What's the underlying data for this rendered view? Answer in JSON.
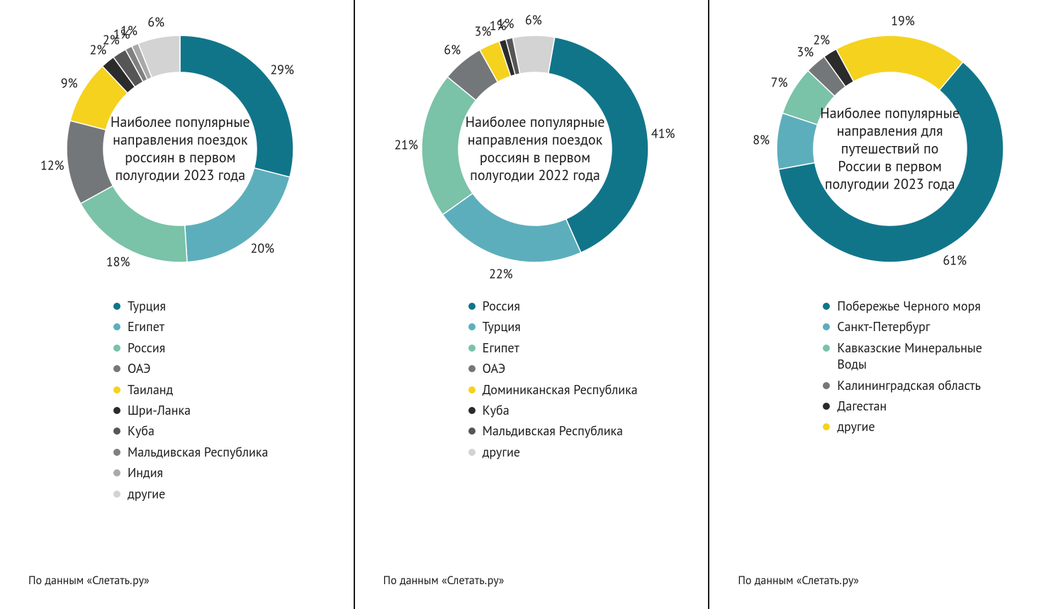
{
  "global": {
    "background_color": "#ffffff",
    "divider_color": "#1a1a1a",
    "text_color": "#1a1a1a",
    "font_family": "PT Sans, Helvetica Neue, Arial, sans-serif",
    "label_fontsize": 18,
    "title_fontsize": 20,
    "legend_fontsize": 18,
    "source_fontsize": 16,
    "donut_outer_radius": 160,
    "donut_inner_radius": 108,
    "label_radius": 182
  },
  "panels": [
    {
      "id": "p1",
      "title": "Наиболее популярные направления поездок россиян в первом полугодии 2023 года",
      "source": "По данным «Слетать.ру»",
      "type": "donut",
      "start_angle_deg": 0,
      "slices": [
        {
          "label": "Турция",
          "value": 29,
          "display": "29%",
          "color": "#11758a",
          "show_label": true
        },
        {
          "label": "Египет",
          "value": 20,
          "display": "20%",
          "color": "#5daebc",
          "show_label": true
        },
        {
          "label": "Россия",
          "value": 18,
          "display": "18%",
          "color": "#7ac2a8",
          "show_label": true
        },
        {
          "label": "ОАЭ",
          "value": 12,
          "display": "12%",
          "color": "#747779",
          "show_label": true
        },
        {
          "label": "Таиланд",
          "value": 9,
          "display": "9%",
          "color": "#f5d21e",
          "show_label": true
        },
        {
          "label": "Шри-Ланка",
          "value": 2,
          "display": "2%",
          "color": "#2b2b2b",
          "show_label": true
        },
        {
          "label": "Куба",
          "value": 2,
          "display": "2%",
          "color": "#565656",
          "show_label": true
        },
        {
          "label": "Мальдивская Республика",
          "value": 1,
          "display": "1%",
          "color": "#808080",
          "show_label": true
        },
        {
          "label": "Индия",
          "value": 1,
          "display": "1%",
          "color": "#a9a9a9",
          "show_label": true
        },
        {
          "label": "другие",
          "value": 6,
          "display": "6%",
          "color": "#d3d3d3",
          "show_label": true
        }
      ]
    },
    {
      "id": "p2",
      "title": "Наиболее популярные направления поездок россиян в первом полугодии 2022 года",
      "source": "По данным «Слетать.ру»",
      "type": "donut",
      "start_angle_deg": 10,
      "slices": [
        {
          "label": "Россия",
          "value": 41,
          "display": "41%",
          "color": "#11758a",
          "show_label": true
        },
        {
          "label": "Турция",
          "value": 22,
          "display": "22%",
          "color": "#5daebc",
          "show_label": true
        },
        {
          "label": "Египет",
          "value": 21,
          "display": "21%",
          "color": "#7ac2a8",
          "show_label": true
        },
        {
          "label": "ОАЭ",
          "value": 6,
          "display": "6%",
          "color": "#747779",
          "show_label": true
        },
        {
          "label": "Доминиканская Республика",
          "value": 3,
          "display": "3%",
          "color": "#f5d21e",
          "show_label": true
        },
        {
          "label": "Куба",
          "value": 1,
          "display": "1%",
          "color": "#2b2b2b",
          "show_label": true
        },
        {
          "label": "Мальдивская Республика",
          "value": 1,
          "display": "1%",
          "color": "#565656",
          "show_label": true
        },
        {
          "label": "другие",
          "value": 6,
          "display": "6%",
          "color": "#d3d3d3",
          "show_label": true
        }
      ]
    },
    {
      "id": "p3",
      "title": "Наиболее популярные направления для путешествий по России в первом полугодии 2023 года",
      "source": "По данным «Слетать.ру»",
      "type": "donut",
      "start_angle_deg": 40,
      "slices": [
        {
          "label": "Побережье Черного моря",
          "value": 61,
          "display": "61%",
          "color": "#11758a",
          "show_label": true
        },
        {
          "label": "Санкт-Петербург",
          "value": 8,
          "display": "8%",
          "color": "#5daebc",
          "show_label": true
        },
        {
          "label": "Кавказские Минеральные Воды",
          "value": 7,
          "display": "7%",
          "color": "#7ac2a8",
          "show_label": true
        },
        {
          "label": "Калининградская область",
          "value": 3,
          "display": "3%",
          "color": "#747779",
          "show_label": true
        },
        {
          "label": "Дагестан",
          "value": 2,
          "display": "2%",
          "color": "#2b2b2b",
          "show_label": true
        },
        {
          "label": "другие",
          "value": 19,
          "display": "19%",
          "color": "#f5d21e",
          "show_label": true
        }
      ]
    }
  ]
}
